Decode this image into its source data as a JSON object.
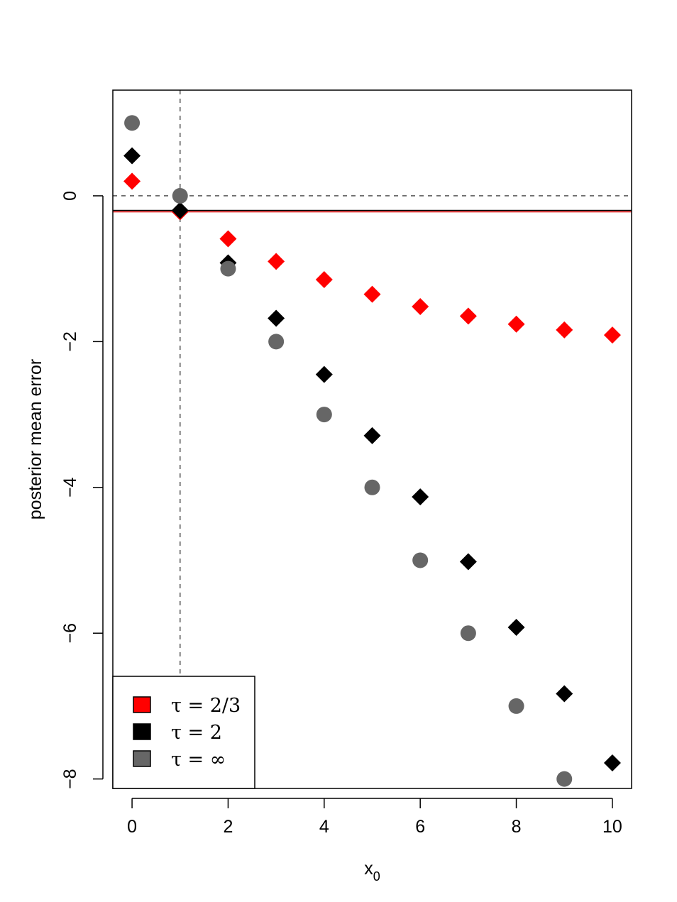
{
  "chart_data": {
    "type": "scatter",
    "xlabel": "x",
    "xlabel_subscript": "0",
    "ylabel": "posterior mean error",
    "xlim": [
      -0.4,
      10.4
    ],
    "ylim": [
      -8.13,
      1.45
    ],
    "x_ticks": [
      0,
      2,
      4,
      6,
      8,
      10
    ],
    "x_tick_labels": [
      "0",
      "2",
      "4",
      "6",
      "8",
      "10"
    ],
    "y_ticks": [
      0,
      -2,
      -4,
      -6,
      -8
    ],
    "y_tick_labels": [
      "0",
      "−2",
      "−4",
      "−6",
      "−8"
    ],
    "grid": false,
    "reference_lines": [
      {
        "orientation": "horizontal",
        "value": 0,
        "style": "dashed",
        "color": "#555555"
      },
      {
        "orientation": "vertical",
        "value": 1,
        "style": "dashed",
        "color": "#555555"
      },
      {
        "orientation": "horizontal",
        "value": -0.2,
        "style": "solid",
        "color": "#000000"
      },
      {
        "orientation": "horizontal",
        "value": -0.22,
        "style": "solid",
        "color": "#e00000"
      }
    ],
    "legend_position": "bottom-left",
    "series": [
      {
        "name": "τ = 2/3",
        "marker": "diamond",
        "color": "#ff0000",
        "x": [
          0,
          1,
          2,
          3,
          4,
          5,
          6,
          7,
          8,
          9,
          10
        ],
        "y": [
          0.2,
          -0.22,
          -0.59,
          -0.9,
          -1.15,
          -1.35,
          -1.52,
          -1.65,
          -1.76,
          -1.84,
          -1.91
        ]
      },
      {
        "name": "τ = 2",
        "marker": "diamond",
        "color": "#000000",
        "x": [
          0,
          1,
          2,
          3,
          4,
          5,
          6,
          7,
          8,
          9,
          10
        ],
        "y": [
          0.55,
          -0.2,
          -0.92,
          -1.68,
          -2.45,
          -3.29,
          -4.13,
          -5.02,
          -5.92,
          -6.83,
          -7.78
        ]
      },
      {
        "name": "τ = ∞",
        "marker": "circle",
        "color": "#666666",
        "x": [
          0,
          1,
          2,
          3,
          4,
          5,
          6,
          7,
          8,
          9
        ],
        "y": [
          1,
          0,
          -1,
          -2,
          -3,
          -4,
          -5,
          -6,
          -7,
          -8
        ]
      }
    ]
  }
}
